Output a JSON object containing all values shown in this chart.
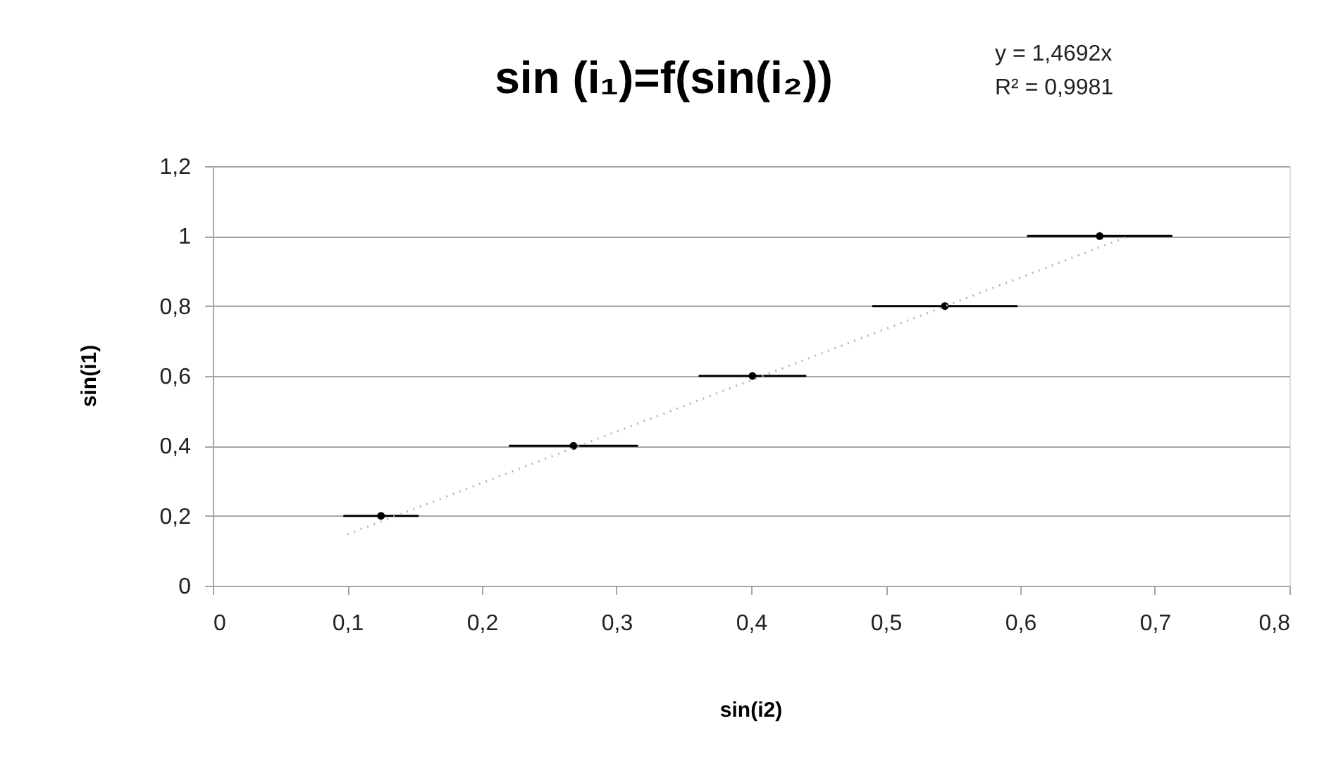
{
  "chart_data": {
    "type": "scatter",
    "title": "sin (i₁)=f(sin(i₂))",
    "xlabel": "sin(i2)",
    "ylabel": "sin(i1)",
    "annotations": [
      "y = 1,4692x",
      "R² = 0,9981"
    ],
    "series": [
      {
        "color": "#000000",
        "x": [
          0.125,
          0.268,
          0.401,
          0.544,
          0.659
        ],
        "values": [
          0.2,
          0.4,
          0.6,
          0.8,
          1.0
        ],
        "xerrors": [
          0.028,
          0.048,
          0.04,
          0.054,
          0.054
        ]
      },
      {
        "type": "line",
        "color": "#9bb8e0",
        "line_style": "dotted",
        "x": [
          0.1,
          0.68
        ],
        "values": [
          0.147,
          0.999
        ]
      }
    ],
    "xlim": [
      0,
      0.8
    ],
    "ylim": [
      0,
      1.2
    ],
    "xticks": [
      0,
      {
        "value": 0.1,
        "label": "0,1"
      },
      {
        "value": 0.2,
        "label": "0,2"
      },
      {
        "value": 0.3,
        "label": "0,3"
      },
      {
        "value": 0.4,
        "label": "0,4"
      },
      {
        "value": 0.5,
        "label": "0,5"
      },
      {
        "value": 0.6,
        "label": "0,6"
      },
      {
        "value": 0.7,
        "label": "0,7"
      },
      {
        "value": 0.8,
        "label": "0,8"
      }
    ],
    "yticks": [
      0,
      {
        "value": 0.2,
        "label": "0,2"
      },
      {
        "value": 0.4,
        "label": "0,4"
      },
      {
        "value": 0.6,
        "label": "0,6"
      },
      {
        "value": 0.8,
        "label": "0,8"
      },
      1,
      {
        "value": 1.2,
        "label": "1,2"
      }
    ],
    "grid": "y"
  }
}
